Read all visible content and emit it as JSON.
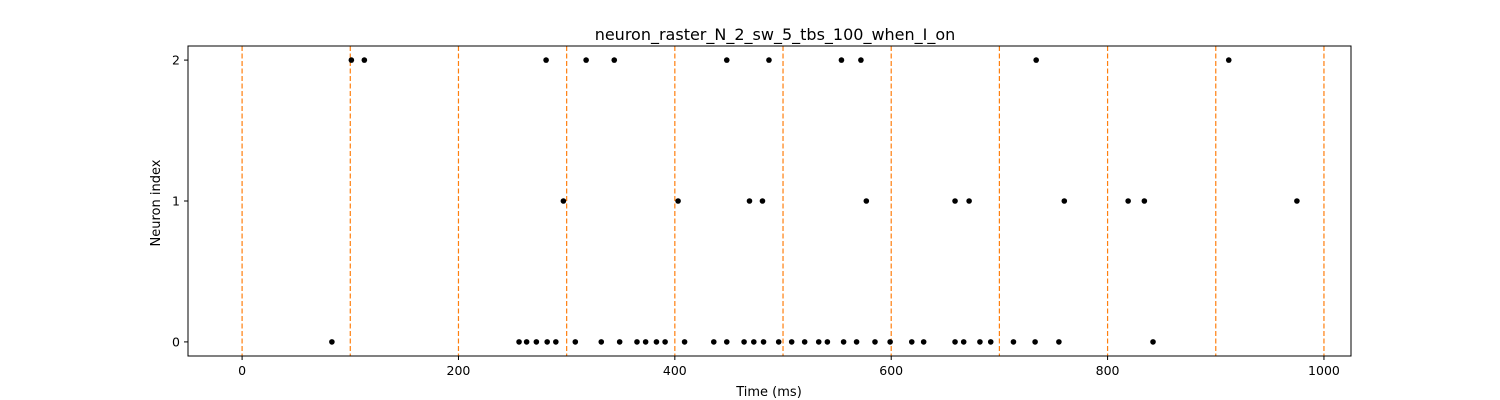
{
  "chart_data": {
    "type": "scatter",
    "title": "neuron_raster_N_2_sw_5_tbs_100_when_I_on",
    "xlabel": "Time (ms)",
    "ylabel": "Neuron index",
    "xlim": [
      -50,
      1025
    ],
    "ylim": [
      -0.1,
      2.1
    ],
    "xticks": [
      0,
      200,
      400,
      600,
      800,
      1000
    ],
    "yticks": [
      0,
      1,
      2
    ],
    "grid": false,
    "spike_color": "#000000",
    "marker_color": "#ff7f0e",
    "markers_x": [
      0,
      100,
      200,
      300,
      400,
      500,
      600,
      700,
      800,
      900,
      1000
    ],
    "series": [
      {
        "neuron": 0,
        "x": [
          83,
          256,
          263,
          272,
          282,
          290,
          308,
          332,
          349,
          365,
          373,
          383,
          391,
          409,
          436,
          448,
          464,
          473,
          482,
          496,
          508,
          520,
          533,
          541,
          556,
          568,
          585,
          599,
          619,
          630,
          659,
          667,
          682,
          692,
          713,
          733,
          755,
          842
        ]
      },
      {
        "neuron": 1,
        "x": [
          297,
          403,
          469,
          481,
          577,
          659,
          672,
          760,
          819,
          834,
          975
        ]
      },
      {
        "neuron": 2,
        "x": [
          101,
          113,
          281,
          318,
          344,
          448,
          487,
          554,
          572,
          734,
          912
        ]
      }
    ]
  }
}
